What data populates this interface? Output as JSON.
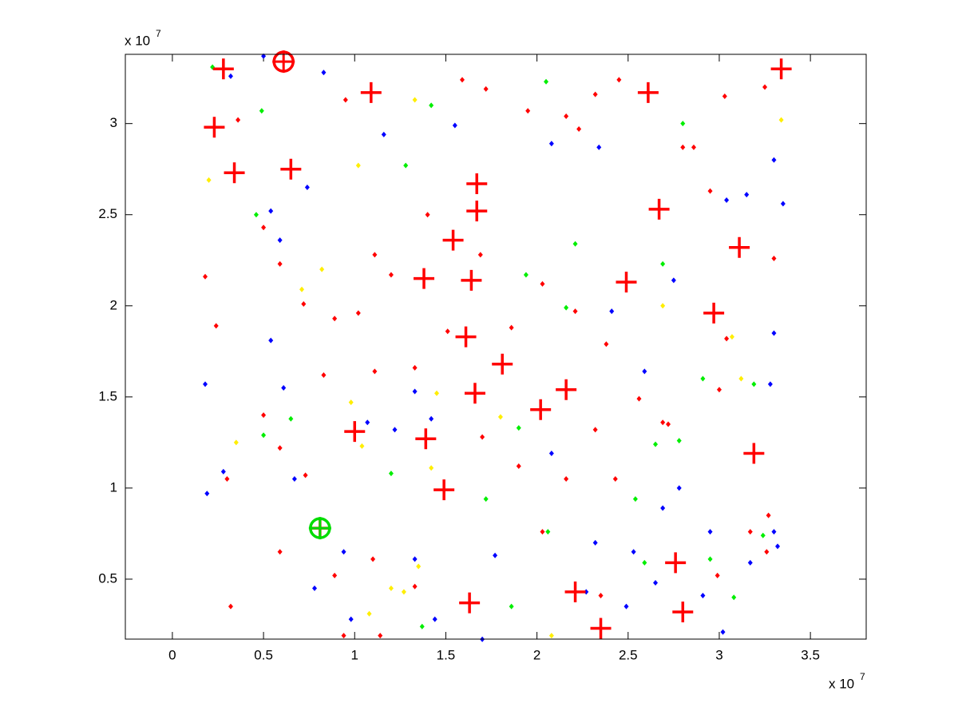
{
  "chart_data": {
    "type": "scatter",
    "x_scale_label": "x 10",
    "x_scale_exponent": "7",
    "y_scale_label": "x 10",
    "y_scale_exponent": "7",
    "xlim": [
      -0.258,
      3.806
    ],
    "ylim": [
      0.171,
      3.38
    ],
    "xticks": [
      0,
      0.5,
      1,
      1.5,
      2,
      2.5,
      3,
      3.5
    ],
    "yticks": [
      0.5,
      1,
      1.5,
      2,
      2.5,
      3
    ],
    "grid": false,
    "series": [
      {
        "color": "#ff0000",
        "marker": "diamond",
        "x": [
          0.28,
          0.23,
          0.36,
          0.34,
          0.65,
          1.09,
          0.95,
          1.59,
          1.72,
          1.95,
          2.16,
          2.32,
          2.61,
          2.45,
          3.03,
          3.34,
          3.25,
          2.8,
          2.86,
          2.23,
          1.67,
          1.67,
          1.4,
          1.54,
          1.69,
          1.11,
          1.38,
          1.64,
          1.2,
          2.03,
          2.49,
          2.67,
          3.11,
          2.95,
          3.3,
          2.97,
          3.04,
          1.61,
          1.51,
          1.02,
          0.89,
          1.81,
          1.33,
          1.66,
          2.02,
          2.16,
          1.0,
          1.39,
          1.7,
          1.49,
          1.9,
          0.81,
          1.1,
          1.33,
          1.63,
          2.03,
          2.35,
          2.76,
          2.8,
          2.99,
          3.19,
          3.0,
          2.56,
          2.72,
          2.32,
          0.59,
          0.73,
          0.3,
          0.18,
          0.24,
          0.5,
          0.59,
          0.72,
          0.83,
          0.5,
          0.32,
          0.59,
          0.94,
          1.14,
          0.89,
          2.16,
          2.43,
          3.17,
          3.27,
          3.26,
          2.69,
          1.86,
          1.11,
          2.38,
          2.21
        ],
        "y": [
          3.3,
          2.98,
          3.02,
          2.73,
          2.75,
          3.17,
          3.13,
          3.24,
          3.19,
          3.07,
          3.04,
          3.16,
          3.17,
          3.24,
          3.15,
          3.3,
          3.2,
          2.87,
          2.87,
          2.97,
          2.52,
          2.67,
          2.5,
          2.36,
          2.28,
          2.28,
          2.15,
          2.14,
          2.17,
          2.12,
          2.13,
          2.53,
          2.32,
          2.63,
          2.26,
          1.96,
          1.82,
          1.83,
          1.86,
          1.96,
          1.93,
          1.68,
          1.66,
          1.52,
          1.43,
          1.54,
          1.31,
          1.27,
          1.28,
          0.99,
          1.12,
          0.78,
          0.61,
          0.46,
          0.37,
          0.76,
          0.41,
          0.59,
          0.32,
          0.52,
          1.19,
          1.54,
          1.49,
          1.35,
          1.32,
          1.22,
          1.07,
          1.05,
          2.16,
          1.89,
          2.43,
          2.23,
          2.01,
          1.62,
          1.4,
          0.35,
          0.65,
          0.19,
          0.19,
          0.52,
          1.05,
          1.05,
          0.76,
          0.85,
          0.65,
          1.36,
          1.88,
          1.64,
          1.79,
          1.97
        ]
      },
      {
        "color": "#0000ff",
        "marker": "diamond",
        "x": [
          0.5,
          0.32,
          0.83,
          1.55,
          1.16,
          0.74,
          0.54,
          0.59,
          2.08,
          2.34,
          3.3,
          3.15,
          3.35,
          3.04,
          2.75,
          2.41,
          3.3,
          0.18,
          0.54,
          0.61,
          1.42,
          1.33,
          2.08,
          2.59,
          3.28,
          2.78,
          2.69,
          2.95,
          3.3,
          3.17,
          3.32,
          2.49,
          2.53,
          2.32,
          1.7,
          1.44,
          0.98,
          0.78,
          0.94,
          1.33,
          1.77,
          0.28,
          0.19,
          0.67,
          1.07,
          1.22,
          2.27,
          3.02,
          2.65,
          2.91
        ],
        "y": [
          3.37,
          3.26,
          3.28,
          2.99,
          2.94,
          2.65,
          2.52,
          2.36,
          2.89,
          2.87,
          2.8,
          2.61,
          2.56,
          2.58,
          2.14,
          1.97,
          1.85,
          1.57,
          1.81,
          1.55,
          1.38,
          1.53,
          1.19,
          1.64,
          1.57,
          1.0,
          0.89,
          0.76,
          0.76,
          0.59,
          0.68,
          0.35,
          0.65,
          0.7,
          0.17,
          0.28,
          0.28,
          0.45,
          0.65,
          0.61,
          0.63,
          1.09,
          0.97,
          1.05,
          1.36,
          1.32,
          0.43,
          0.21,
          0.48,
          0.41
        ]
      },
      {
        "color": "#00ee00",
        "marker": "diamond",
        "x": [
          0.22,
          0.49,
          0.46,
          1.28,
          1.42,
          2.05,
          2.8,
          2.91,
          3.19,
          2.78,
          2.65,
          2.16,
          1.94,
          2.21,
          2.69,
          0.5,
          0.65,
          1.2,
          1.72,
          2.06,
          2.54,
          2.59,
          2.95,
          3.24,
          3.08,
          1.37,
          1.86,
          1.9
        ],
        "y": [
          3.31,
          3.07,
          2.5,
          2.77,
          3.1,
          3.23,
          3.0,
          1.6,
          1.57,
          1.26,
          1.24,
          1.99,
          2.17,
          2.34,
          2.23,
          1.29,
          1.38,
          1.08,
          0.94,
          0.76,
          0.94,
          0.59,
          0.61,
          0.74,
          0.4,
          0.24,
          0.35,
          1.33
        ]
      },
      {
        "color": "#ffee00",
        "marker": "diamond",
        "x": [
          0.2,
          1.02,
          1.33,
          0.82,
          0.71,
          0.35,
          0.98,
          1.04,
          1.45,
          1.8,
          1.42,
          1.08,
          1.2,
          1.35,
          2.08,
          2.69,
          3.07,
          3.34,
          3.12,
          1.27
        ],
        "y": [
          2.69,
          2.77,
          3.13,
          2.2,
          2.09,
          1.25,
          1.47,
          1.23,
          1.52,
          1.39,
          1.11,
          0.31,
          0.45,
          0.57,
          0.19,
          2.0,
          1.83,
          3.02,
          1.6,
          0.43
        ]
      },
      {
        "color": "#ff0000",
        "marker": "plus",
        "x": [
          0.28,
          0.23,
          0.65,
          0.34,
          1.09,
          2.61,
          3.34,
          1.67,
          1.67,
          2.67,
          3.11,
          1.38,
          1.64,
          2.97,
          1.61,
          1.81,
          1.66,
          2.02,
          2.16,
          1.0,
          1.39,
          1.49,
          0.81,
          1.63,
          2.35,
          2.76,
          2.8,
          3.19,
          2.21,
          2.49,
          1.54
        ],
        "y": [
          3.3,
          2.98,
          2.75,
          2.73,
          3.17,
          3.17,
          3.3,
          2.67,
          2.52,
          2.53,
          2.32,
          2.15,
          2.14,
          1.96,
          1.83,
          1.68,
          1.52,
          1.43,
          1.54,
          1.31,
          1.27,
          0.99,
          0.78,
          0.37,
          0.23,
          0.59,
          0.32,
          1.19,
          0.43,
          2.13,
          2.36
        ]
      },
      {
        "color": "#ff0000",
        "marker": "circle",
        "x": [
          0.61
        ],
        "y": [
          3.34
        ]
      },
      {
        "color": "#00dd00",
        "marker": "circle",
        "x": [
          0.81
        ],
        "y": [
          0.78
        ]
      }
    ]
  }
}
